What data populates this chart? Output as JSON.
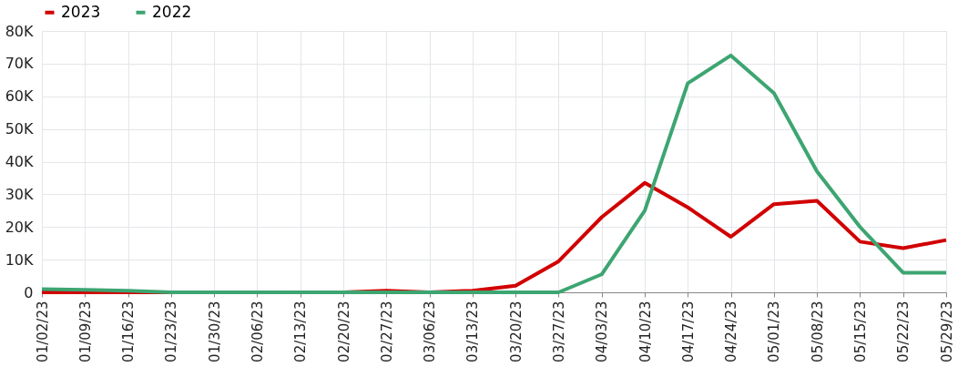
{
  "chart_data": {
    "type": "line",
    "categories": [
      "01/02/23",
      "01/09/23",
      "01/16/23",
      "01/23/23",
      "01/30/23",
      "02/06/23",
      "02/13/23",
      "02/20/23",
      "02/27/23",
      "03/06/23",
      "03/13/23",
      "03/20/23",
      "03/27/23",
      "04/03/23",
      "04/10/23",
      "04/17/23",
      "04/24/23",
      "05/01/23",
      "05/08/23",
      "05/15/23",
      "05/22/23",
      "05/29/23"
    ],
    "series": [
      {
        "name": "2023",
        "color": "#d10000",
        "values": [
          0,
          0,
          0,
          0,
          0,
          0,
          0,
          0,
          500,
          0,
          500,
          2000,
          9500,
          23000,
          33500,
          26000,
          17000,
          27000,
          28000,
          15500,
          13500,
          16000
        ]
      },
      {
        "name": "2022",
        "color": "#3da571",
        "values": [
          1000,
          800,
          500,
          0,
          0,
          0,
          0,
          0,
          0,
          0,
          0,
          0,
          0,
          5500,
          25000,
          64000,
          72500,
          61000,
          37000,
          20000,
          6000,
          6000
        ]
      }
    ],
    "ylim": [
      0,
      80000
    ],
    "yticks": [
      0,
      {
        "value": 10000,
        "label": "10K"
      },
      {
        "value": 20000,
        "label": "20K"
      },
      {
        "value": 30000,
        "label": "30K"
      },
      {
        "value": 40000,
        "label": "40K"
      },
      {
        "value": 50000,
        "label": "50K"
      },
      {
        "value": 60000,
        "label": "60K"
      },
      {
        "value": 70000,
        "label": "70K"
      },
      {
        "value": 80000,
        "label": "80K"
      }
    ],
    "grid": true,
    "legend": "top",
    "marker": "none",
    "line_style": "solid"
  }
}
